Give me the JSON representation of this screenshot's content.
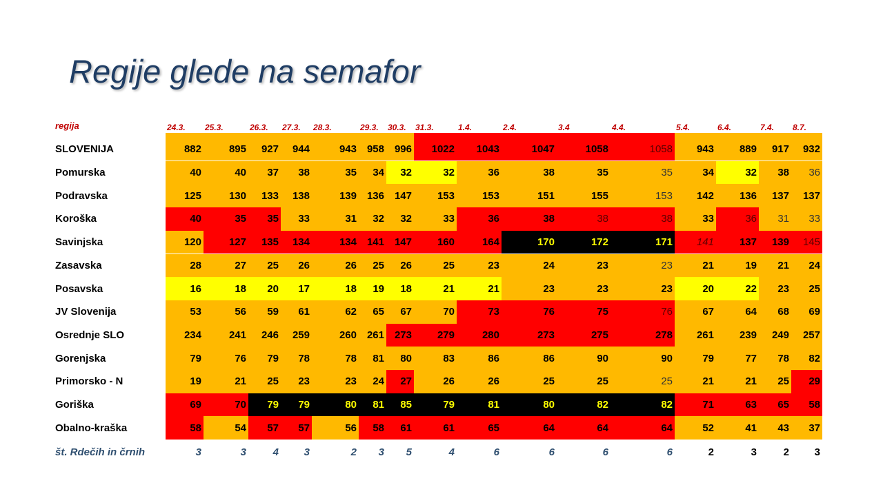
{
  "title": "Regije glede na semafor",
  "table": {
    "header": [
      "regija",
      "24.3.",
      "25.3.",
      "26.3.",
      "27.3.",
      "28.3.",
      "29.3.",
      "30.3.",
      "31.3.",
      "1.4.",
      "2.4.",
      "3.4",
      "4.4.",
      "5.4.",
      "6.4.",
      "7.4.",
      "8.7."
    ],
    "rows": [
      [
        "SLOVENIJA",
        882,
        895,
        927,
        944,
        943,
        958,
        996,
        1022,
        1043,
        1047,
        1058,
        1058,
        943,
        889,
        917,
        932
      ],
      [
        "Pomurska",
        40,
        40,
        37,
        38,
        35,
        34,
        32,
        32,
        36,
        38,
        35,
        35,
        34,
        32,
        38,
        36
      ],
      [
        "Podravska",
        125,
        130,
        133,
        138,
        139,
        136,
        147,
        153,
        153,
        151,
        155,
        153,
        142,
        136,
        137,
        137
      ],
      [
        "Koroška",
        40,
        35,
        35,
        33,
        31,
        32,
        32,
        33,
        36,
        38,
        38,
        38,
        33,
        36,
        31,
        33
      ],
      [
        "Savinjska",
        120,
        127,
        135,
        134,
        134,
        141,
        147,
        160,
        164,
        170,
        172,
        171,
        141,
        137,
        139,
        145
      ],
      [
        "Zasavska",
        28,
        27,
        25,
        26,
        26,
        25,
        26,
        25,
        23,
        24,
        23,
        23,
        21,
        19,
        21,
        24
      ],
      [
        "Posavska",
        16,
        18,
        20,
        17,
        18,
        19,
        18,
        21,
        21,
        23,
        23,
        23,
        20,
        22,
        23,
        25
      ],
      [
        "JV Slovenija",
        53,
        56,
        59,
        61,
        62,
        65,
        67,
        70,
        73,
        76,
        75,
        76,
        67,
        64,
        68,
        69
      ],
      [
        "Osrednje SLO",
        234,
        241,
        246,
        259,
        260,
        261,
        273,
        279,
        280,
        273,
        275,
        278,
        261,
        239,
        249,
        257
      ],
      [
        "Gorenjska",
        79,
        76,
        79,
        78,
        78,
        81,
        80,
        83,
        86,
        86,
        90,
        90,
        79,
        77,
        78,
        82
      ],
      [
        "Primorsko - N",
        19,
        21,
        25,
        23,
        23,
        24,
        27,
        26,
        26,
        25,
        25,
        25,
        21,
        21,
        25,
        29
      ],
      [
        "Goriška",
        69,
        70,
        79,
        79,
        80,
        81,
        85,
        79,
        81,
        80,
        82,
        82,
        71,
        63,
        65,
        58
      ],
      [
        "Obalno-kraška",
        58,
        54,
        57,
        57,
        56,
        58,
        61,
        61,
        65,
        64,
        64,
        64,
        52,
        41,
        43,
        37
      ]
    ],
    "footer": [
      "št. Rdečih in črnih",
      3,
      3,
      4,
      3,
      2,
      3,
      5,
      4,
      6,
      6,
      6,
      6,
      2,
      3,
      2,
      3
    ]
  }
}
